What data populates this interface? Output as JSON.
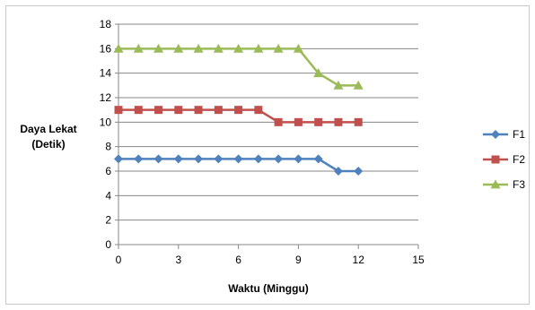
{
  "chart_data": {
    "type": "line",
    "title": "",
    "xlabel": "Waktu (Minggu)",
    "ylabel_lines": [
      "Daya Lekat",
      "(Detik)"
    ],
    "xlim": [
      0,
      15
    ],
    "ylim": [
      0,
      18
    ],
    "xticks": [
      0,
      3,
      6,
      9,
      12,
      15
    ],
    "yticks": [
      0,
      2,
      4,
      6,
      8,
      10,
      12,
      14,
      16,
      18
    ],
    "grid": "horizontal",
    "legend_position": "right",
    "x": [
      0,
      1,
      2,
      3,
      4,
      5,
      6,
      7,
      8,
      9,
      10,
      11,
      12
    ],
    "series": [
      {
        "name": "F1",
        "color": "#4f81bd",
        "marker": "diamond",
        "values": [
          7,
          7,
          7,
          7,
          7,
          7,
          7,
          7,
          7,
          7,
          7,
          6,
          6
        ]
      },
      {
        "name": "F2",
        "color": "#c0504d",
        "marker": "square",
        "values": [
          11,
          11,
          11,
          11,
          11,
          11,
          11,
          11,
          10,
          10,
          10,
          10,
          10
        ]
      },
      {
        "name": "F3",
        "color": "#9bbb59",
        "marker": "triangle",
        "values": [
          16,
          16,
          16,
          16,
          16,
          16,
          16,
          16,
          16,
          16,
          14,
          13,
          13
        ]
      }
    ]
  }
}
